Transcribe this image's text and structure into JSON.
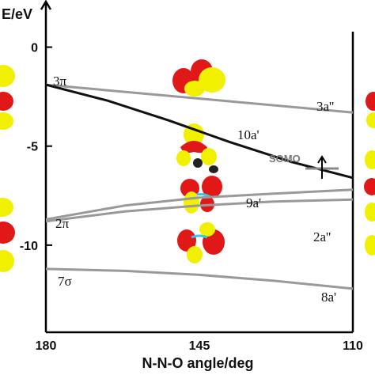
{
  "chart_data": {
    "type": "line",
    "ylabel": "E/eV",
    "xlabel": "N-N-O angle/deg",
    "x_ticks": [
      "180",
      "145",
      "110"
    ],
    "y_ticks": [
      "0",
      "-5",
      "-10"
    ],
    "xlim": [
      180,
      110
    ],
    "ylim": [
      -14.4,
      2.3
    ],
    "series": [
      {
        "name": "3π → 3a''",
        "color": "#999999",
        "x": [
          180,
          145,
          110
        ],
        "values": [
          -1.9,
          -2.6,
          -3.3
        ]
      },
      {
        "name": "3π → 10a'",
        "color": "#111111",
        "x": [
          180,
          166,
          152,
          138,
          124,
          110
        ],
        "values": [
          -1.9,
          -2.7,
          -3.7,
          -4.8,
          -5.8,
          -6.6
        ]
      },
      {
        "name": "2π → 9a'",
        "color": "#999999",
        "x": [
          180,
          162,
          145,
          128,
          110
        ],
        "values": [
          -8.7,
          -8.0,
          -7.6,
          -7.4,
          -7.2
        ]
      },
      {
        "name": "2π → 2a''",
        "color": "#999999",
        "x": [
          180,
          162,
          145,
          128,
          110
        ],
        "values": [
          -8.8,
          -8.3,
          -8.0,
          -7.8,
          -7.7
        ]
      },
      {
        "name": "7σ → 8a'",
        "color": "#999999",
        "x": [
          180,
          162,
          145,
          128,
          110
        ],
        "values": [
          -11.2,
          -11.3,
          -11.5,
          -11.8,
          -12.2
        ]
      }
    ],
    "labels": {
      "l_3pi": "3π",
      "l_2pi": "2π",
      "l_7sigma": "7σ",
      "l_3a2": "3a''",
      "l_10a1": "10a'",
      "l_9a1": "9a'",
      "l_2a2": "2a''",
      "l_8a1": "8a'",
      "somo": "SOMO"
    },
    "colors": {
      "lobe_red": "#e01818",
      "lobe_yellow": "#f0f000",
      "axis": "#000000"
    }
  }
}
